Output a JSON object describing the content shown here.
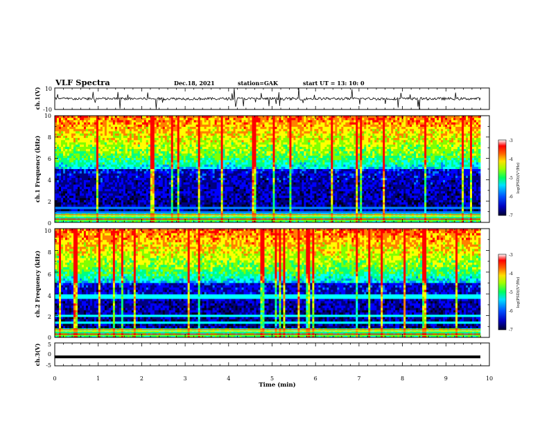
{
  "header": {
    "title": "VLF Spectra",
    "date": "Dec.18, 2021",
    "station": "station=GAK",
    "start": "start  UT =  13: 10: 0"
  },
  "colors": {
    "colormap": [
      "#000020",
      "#00007f",
      "#0000ff",
      "#0080ff",
      "#00ffff",
      "#00ff80",
      "#80ff00",
      "#ffff00",
      "#ff8000",
      "#ff0000",
      "#ffffff"
    ],
    "trace": "#000000"
  },
  "chart_data": {
    "type": "heatmap",
    "xlabel": "Time (min)",
    "xlim": [
      0,
      10
    ],
    "x_ticks": [
      "0",
      "1",
      "2",
      "3",
      "4",
      "5",
      "6",
      "7",
      "8",
      "9",
      "10"
    ],
    "panels": [
      {
        "kind": "line",
        "ylabel": "ch.1(V)",
        "ylim": [
          -10,
          10
        ],
        "y_ticks": [
          "10",
          "-10"
        ],
        "description_series": "waveform amplitude, baseline near 0 V with spikes"
      },
      {
        "kind": "heatmap",
        "ylabel": "ch.1  Frequency (kHz)",
        "ylim": [
          0,
          10
        ],
        "y_ticks": [
          "0",
          "2",
          "4",
          "6",
          "8",
          "10"
        ],
        "colorbar": {
          "label": "log(PSD)(V²/Hz)",
          "range": [
            -7,
            -3
          ],
          "ticks": [
            "-3",
            "-4",
            "-5",
            "-6",
            "-7"
          ]
        }
      },
      {
        "kind": "heatmap",
        "ylabel": "ch.2  Frequency (kHz)",
        "ylim": [
          0,
          10
        ],
        "y_ticks": [
          "0",
          "2",
          "4",
          "6",
          "8",
          "10"
        ],
        "colorbar": {
          "label": "log(PSD)(V²/Hz)",
          "range": [
            -7,
            -3
          ],
          "ticks": [
            "-3",
            "-4",
            "-5",
            "-6",
            "-7"
          ]
        }
      },
      {
        "kind": "line",
        "ylabel": "ch.3(V)",
        "ylim": [
          -5,
          5
        ],
        "y_ticks": [
          "5",
          "0",
          "-5"
        ],
        "constant_value": -1.1
      }
    ]
  }
}
